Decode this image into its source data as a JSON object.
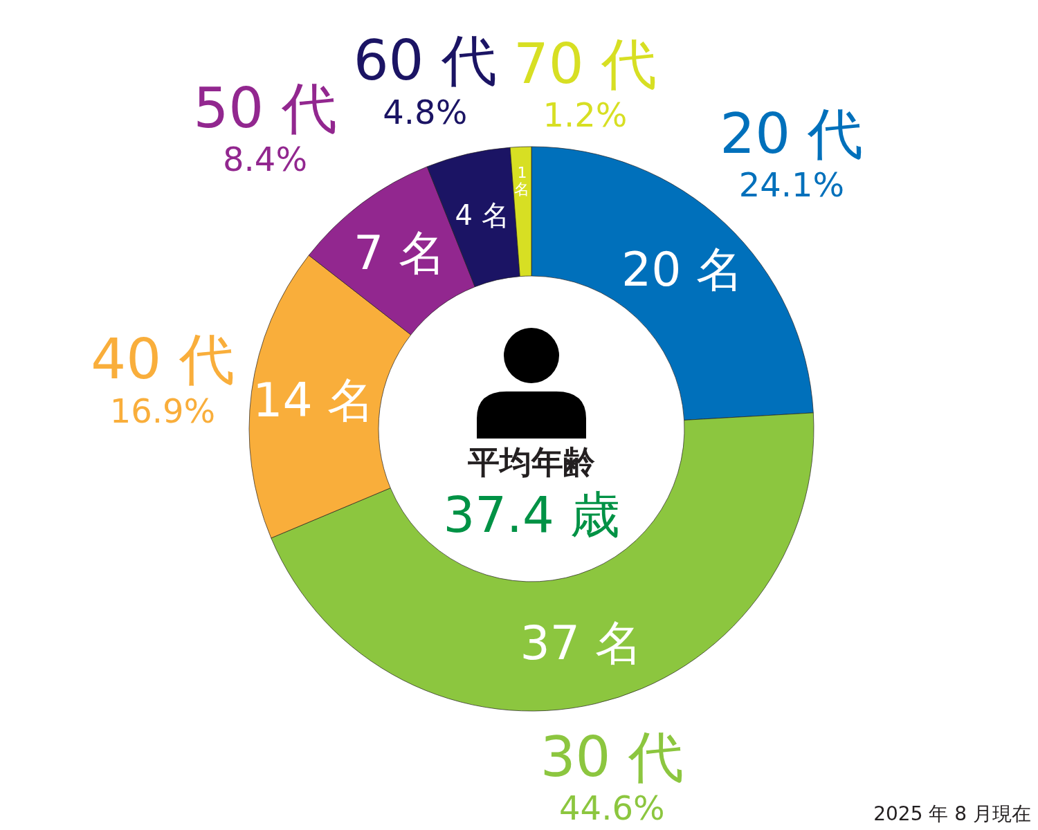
{
  "chart_data": {
    "type": "donut",
    "categories": [
      "20 代",
      "30 代",
      "40 代",
      "50 代",
      "60 代",
      "70 代"
    ],
    "values": [
      20,
      37,
      14,
      7,
      4,
      1
    ],
    "value_labels": [
      "20 名",
      "37 名",
      "14 名",
      "7 名",
      "4 名",
      "1 名"
    ],
    "colors": [
      "#0070bb",
      "#8cc63f",
      "#f9ae3b",
      "#92278f",
      "#1b1464",
      "#d7df23"
    ],
    "annotations": [
      "平均年齢",
      "37.4 歳",
      {
        "text": "24.1%",
        "x": "20 代"
      },
      {
        "text": "44.6%",
        "x": "30 代"
      },
      {
        "text": "16.9%",
        "x": "40 代"
      },
      {
        "text": "8.4%",
        "x": "50 代"
      },
      {
        "text": "4.8%",
        "x": "60 代"
      },
      {
        "text": "1.2%",
        "x": "70 代"
      },
      "2025 年 8 月現在"
    ]
  }
}
